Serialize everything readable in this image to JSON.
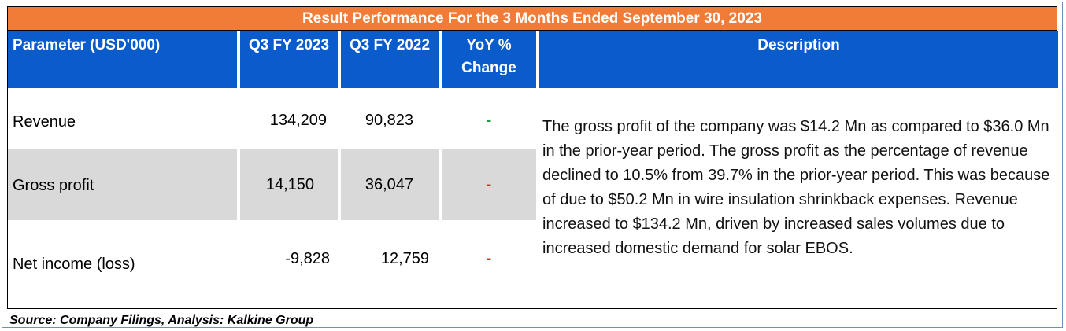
{
  "title": "Result Performance For the 3 Months Ended September 30, 2023",
  "headers": {
    "parameter": "Parameter  (USD'000)",
    "q3_2023": "Q3 FY 2023",
    "q3_2022": "Q3 FY 2022",
    "yoy_line1": "YoY %",
    "yoy_line2": "Change",
    "description": "Description"
  },
  "rows": [
    {
      "label": "Revenue",
      "q3_2023": "134,209",
      "q3_2022": "90,823",
      "yoy": "-",
      "yoy_color": "#1e9e3e"
    },
    {
      "label": "Gross profit",
      "q3_2023": "14,150",
      "q3_2022": "36,047",
      "yoy": "-",
      "yoy_color": "#e02020"
    },
    {
      "label": "Net income (loss)",
      "q3_2023": "-9,828",
      "q3_2022": "12,759",
      "yoy": "-",
      "yoy_color": "#e02020"
    }
  ],
  "description": "The gross profit of the company was $14.2 Mn as compared to $36.0 Mn in the prior-year period. The gross profit as the percentage of revenue declined to 10.5% from 39.7% in the prior-year period. This was because of due to $50.2 Mn in wire insulation shrinkback expenses. Revenue increased to $134.2 Mn, driven by increased sales volumes due to increased domestic demand for solar EBOS.",
  "source": "Source: Company Filings, Analysis: Kalkine Group",
  "colors": {
    "title_bar": "#f07c38",
    "header": "#0a5ccc",
    "row_alt": "#d9d9d9"
  }
}
